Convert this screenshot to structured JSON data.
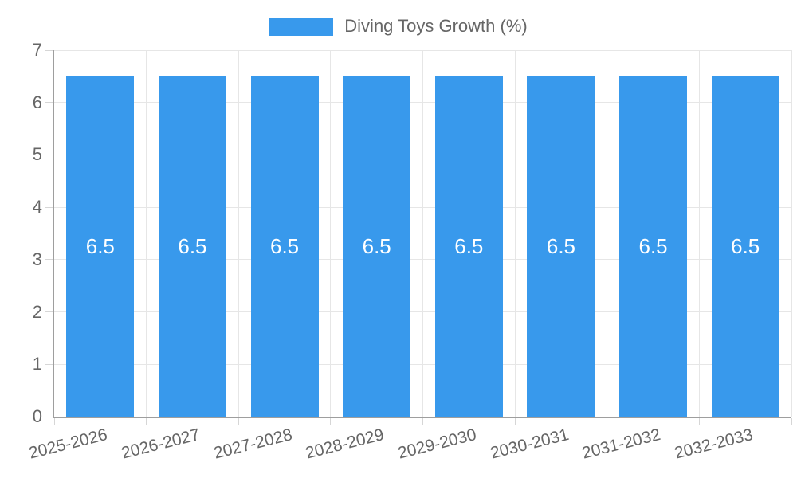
{
  "legend": {
    "label": "Diving Toys Growth (%)"
  },
  "colors": {
    "bar": "#3899ec",
    "grid": "#e6e6e6",
    "tick": "#d6d6d6",
    "axis": "#9e9e9e",
    "text": "#666666",
    "value_label": "#ffffff",
    "background": "#ffffff"
  },
  "chart_data": {
    "type": "bar",
    "title": "Diving Toys Growth (%)",
    "categories": [
      "2025-2026",
      "2026-2027",
      "2027-2028",
      "2028-2029",
      "2029-2030",
      "2030-2031",
      "2031-2032",
      "2032-2033"
    ],
    "values": [
      6.5,
      6.5,
      6.5,
      6.5,
      6.5,
      6.5,
      6.5,
      6.5
    ],
    "value_labels": [
      "6.5",
      "6.5",
      "6.5",
      "6.5",
      "6.5",
      "6.5",
      "6.5",
      "6.5"
    ],
    "ylim": [
      0,
      7
    ],
    "yticks": [
      0,
      1,
      2,
      3,
      4,
      5,
      6,
      7
    ],
    "grid": true,
    "legend_position": "top",
    "xlabel": "",
    "ylabel": ""
  }
}
